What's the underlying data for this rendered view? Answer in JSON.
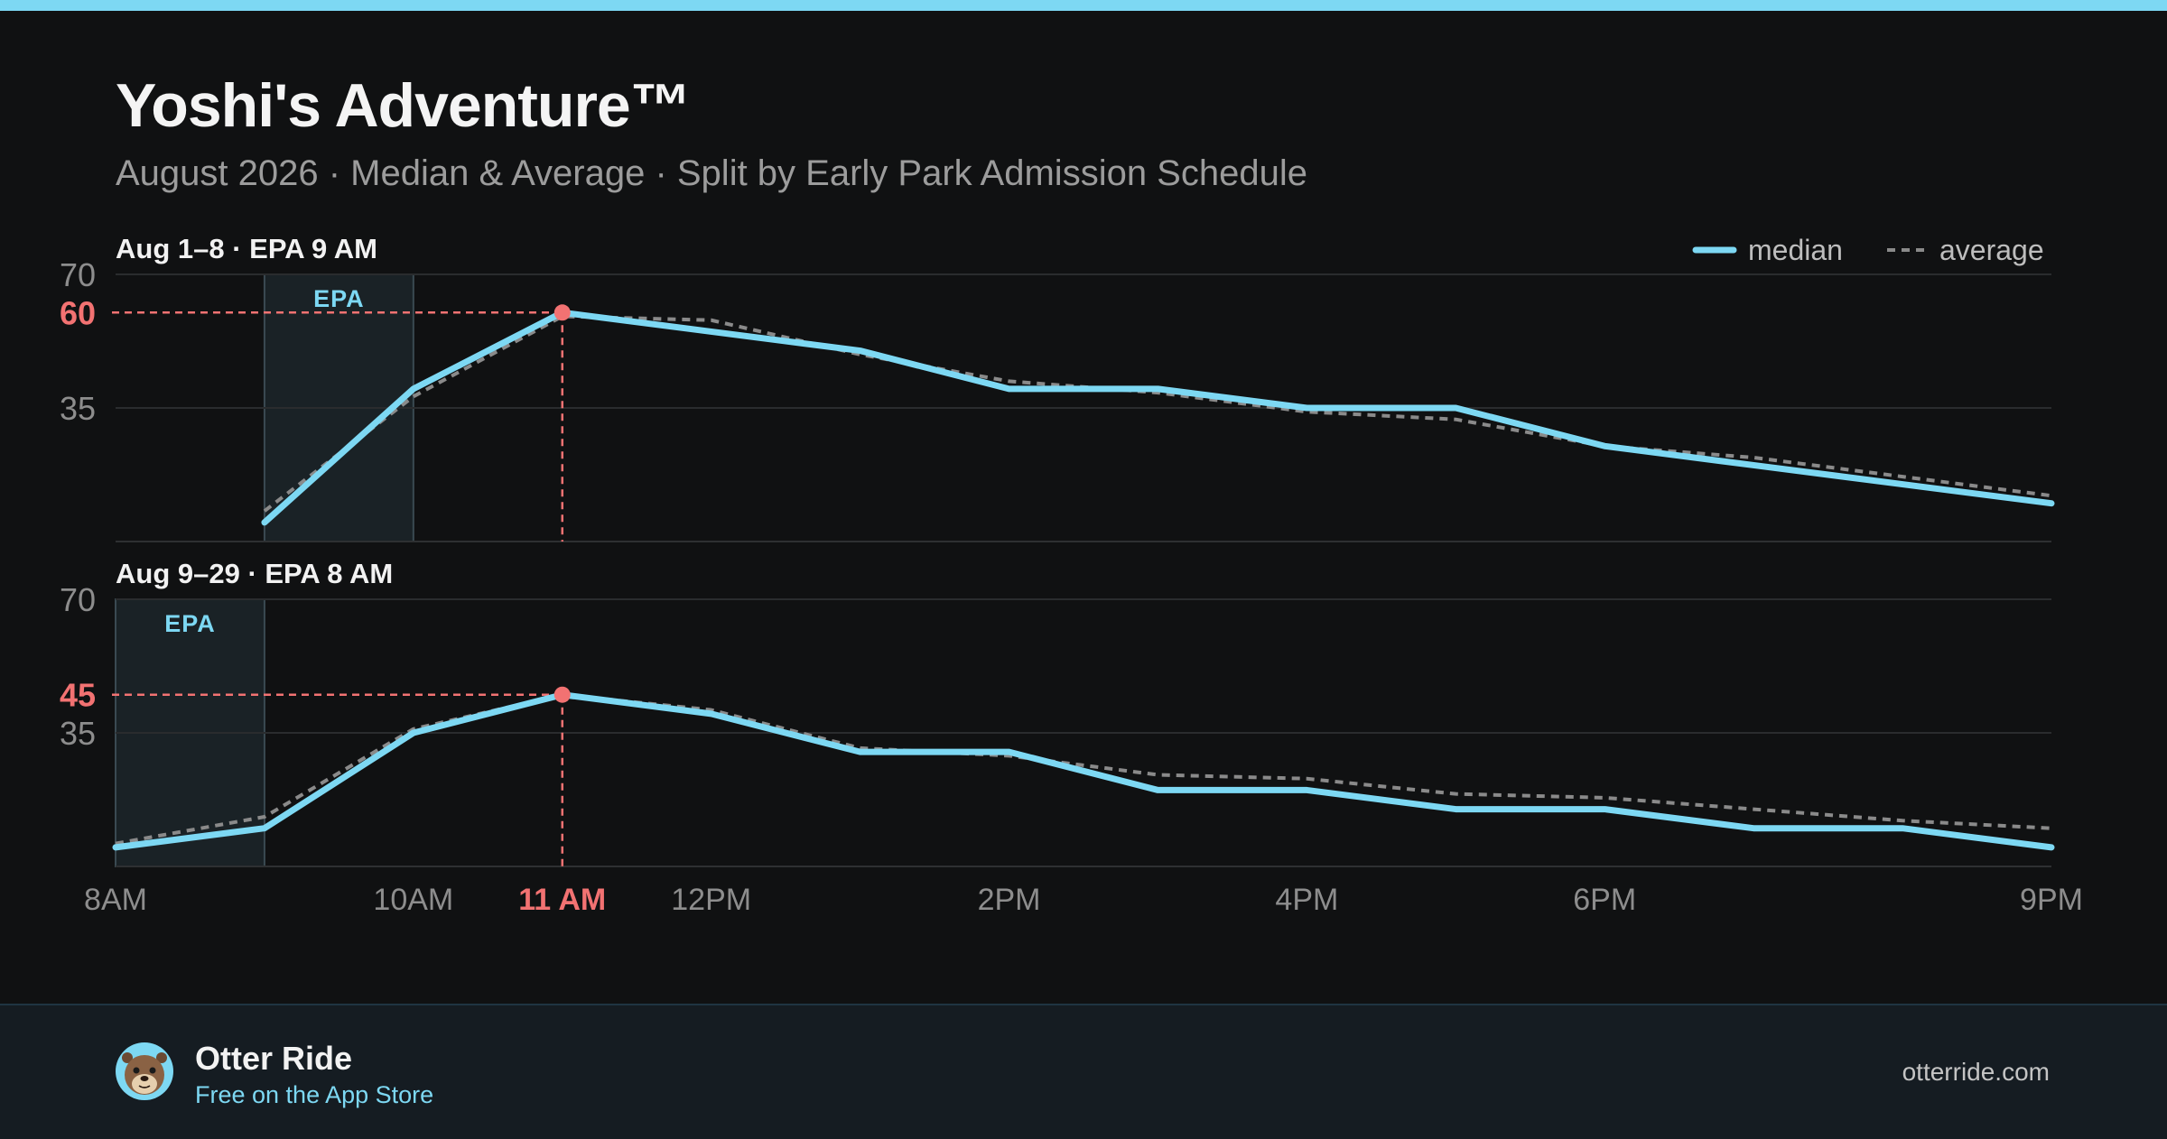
{
  "header": {
    "title": "Yoshi's Adventure™",
    "subtitle": "August 2026 · Median & Average · Split by Early Park Admission Schedule"
  },
  "legend": {
    "median_label": "median",
    "average_label": "average"
  },
  "colors": {
    "accent": "#7dd8f3",
    "highlight": "#f27272",
    "average": "#8a8a8a",
    "background": "#101112",
    "footer_bg": "#151c22"
  },
  "chart_data": {
    "type": "line",
    "shared_x_axis": {
      "range_hours": [
        8,
        21
      ],
      "ticks": [
        {
          "hour": 8,
          "label": "8AM"
        },
        {
          "hour": 10,
          "label": "10AM"
        },
        {
          "hour": 11,
          "label": "11 AM",
          "highlight": true
        },
        {
          "hour": 12,
          "label": "12PM"
        },
        {
          "hour": 14,
          "label": "2PM"
        },
        {
          "hour": 16,
          "label": "4PM"
        },
        {
          "hour": 18,
          "label": "6PM"
        },
        {
          "hour": 21,
          "label": "9PM"
        }
      ]
    },
    "panels": [
      {
        "label": "Aug 1–8 · EPA 9 AM",
        "epa_label": "EPA",
        "epa_hours": [
          9,
          10
        ],
        "ylim": [
          0,
          70
        ],
        "yticks": [
          {
            "value": 70,
            "label": "70"
          },
          {
            "value": 35,
            "label": "35"
          }
        ],
        "peak": {
          "hour": 11,
          "value": 60,
          "label": "60"
        },
        "series": [
          {
            "name": "median",
            "x": [
              9,
              10,
              11,
              12,
              13,
              14,
              15,
              16,
              17,
              18,
              19,
              20,
              21
            ],
            "values": [
              5,
              40,
              60,
              55,
              50,
              40,
              40,
              35,
              35,
              25,
              20,
              15,
              10
            ]
          },
          {
            "name": "average",
            "x": [
              9,
              10,
              11,
              12,
              13,
              14,
              15,
              16,
              17,
              18,
              19,
              20,
              21
            ],
            "values": [
              8,
              38,
              59,
              58,
              49,
              42,
              39,
              34,
              32,
              25,
              22,
              17,
              12
            ]
          }
        ]
      },
      {
        "label": "Aug 9–29 · EPA 8 AM",
        "epa_label": "EPA",
        "epa_hours": [
          8,
          9
        ],
        "ylim": [
          0,
          70
        ],
        "yticks": [
          {
            "value": 70,
            "label": "70"
          },
          {
            "value": 35,
            "label": "35"
          }
        ],
        "peak": {
          "hour": 11,
          "value": 45,
          "label": "45"
        },
        "series": [
          {
            "name": "median",
            "x": [
              8,
              9,
              10,
              11,
              12,
              13,
              14,
              15,
              16,
              17,
              18,
              19,
              20,
              21
            ],
            "values": [
              5,
              10,
              35,
              45,
              40,
              30,
              30,
              20,
              20,
              15,
              15,
              10,
              10,
              5
            ]
          },
          {
            "name": "average",
            "x": [
              8,
              9,
              10,
              11,
              12,
              13,
              14,
              15,
              16,
              17,
              18,
              19,
              20,
              21
            ],
            "values": [
              6,
              13,
              36,
              45,
              41,
              31,
              29,
              24,
              23,
              19,
              18,
              15,
              12,
              10
            ]
          }
        ]
      }
    ]
  },
  "footer": {
    "brand_name": "Otter Ride",
    "brand_tagline": "Free on the App Store",
    "site": "otterride.com",
    "avatar_icon": "otter-face-icon"
  }
}
